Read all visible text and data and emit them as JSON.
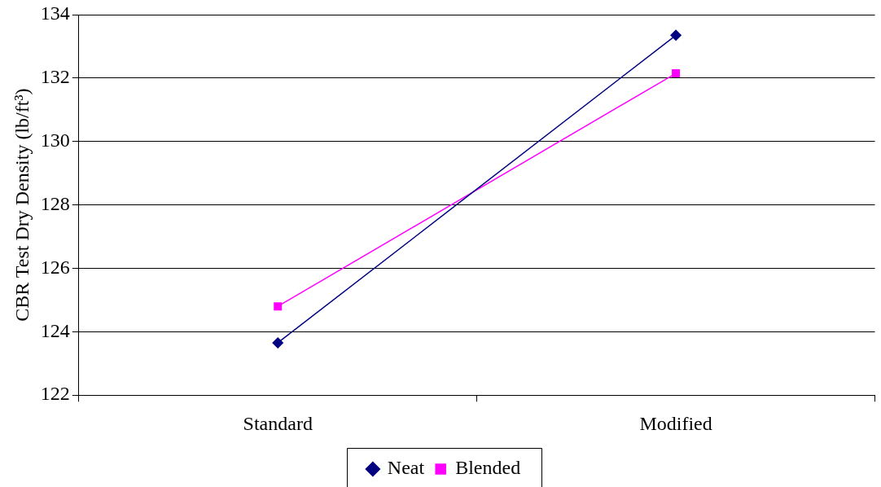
{
  "chart_data": {
    "type": "line",
    "ylabel": "CBR Test Dry Density (lb/ft³)",
    "categories": [
      "Standard",
      "Modified"
    ],
    "series": [
      {
        "name": "Neat",
        "color": "#000080",
        "marker": "diamond",
        "values": [
          123.65,
          133.35
        ]
      },
      {
        "name": "Blended",
        "color": "#ff00ff",
        "marker": "square",
        "values": [
          124.8,
          132.15
        ]
      }
    ],
    "ylim": [
      122,
      134
    ],
    "yticks": [
      122,
      124,
      126,
      128,
      130,
      132,
      134
    ],
    "grid": "y",
    "legend": "bottom"
  }
}
